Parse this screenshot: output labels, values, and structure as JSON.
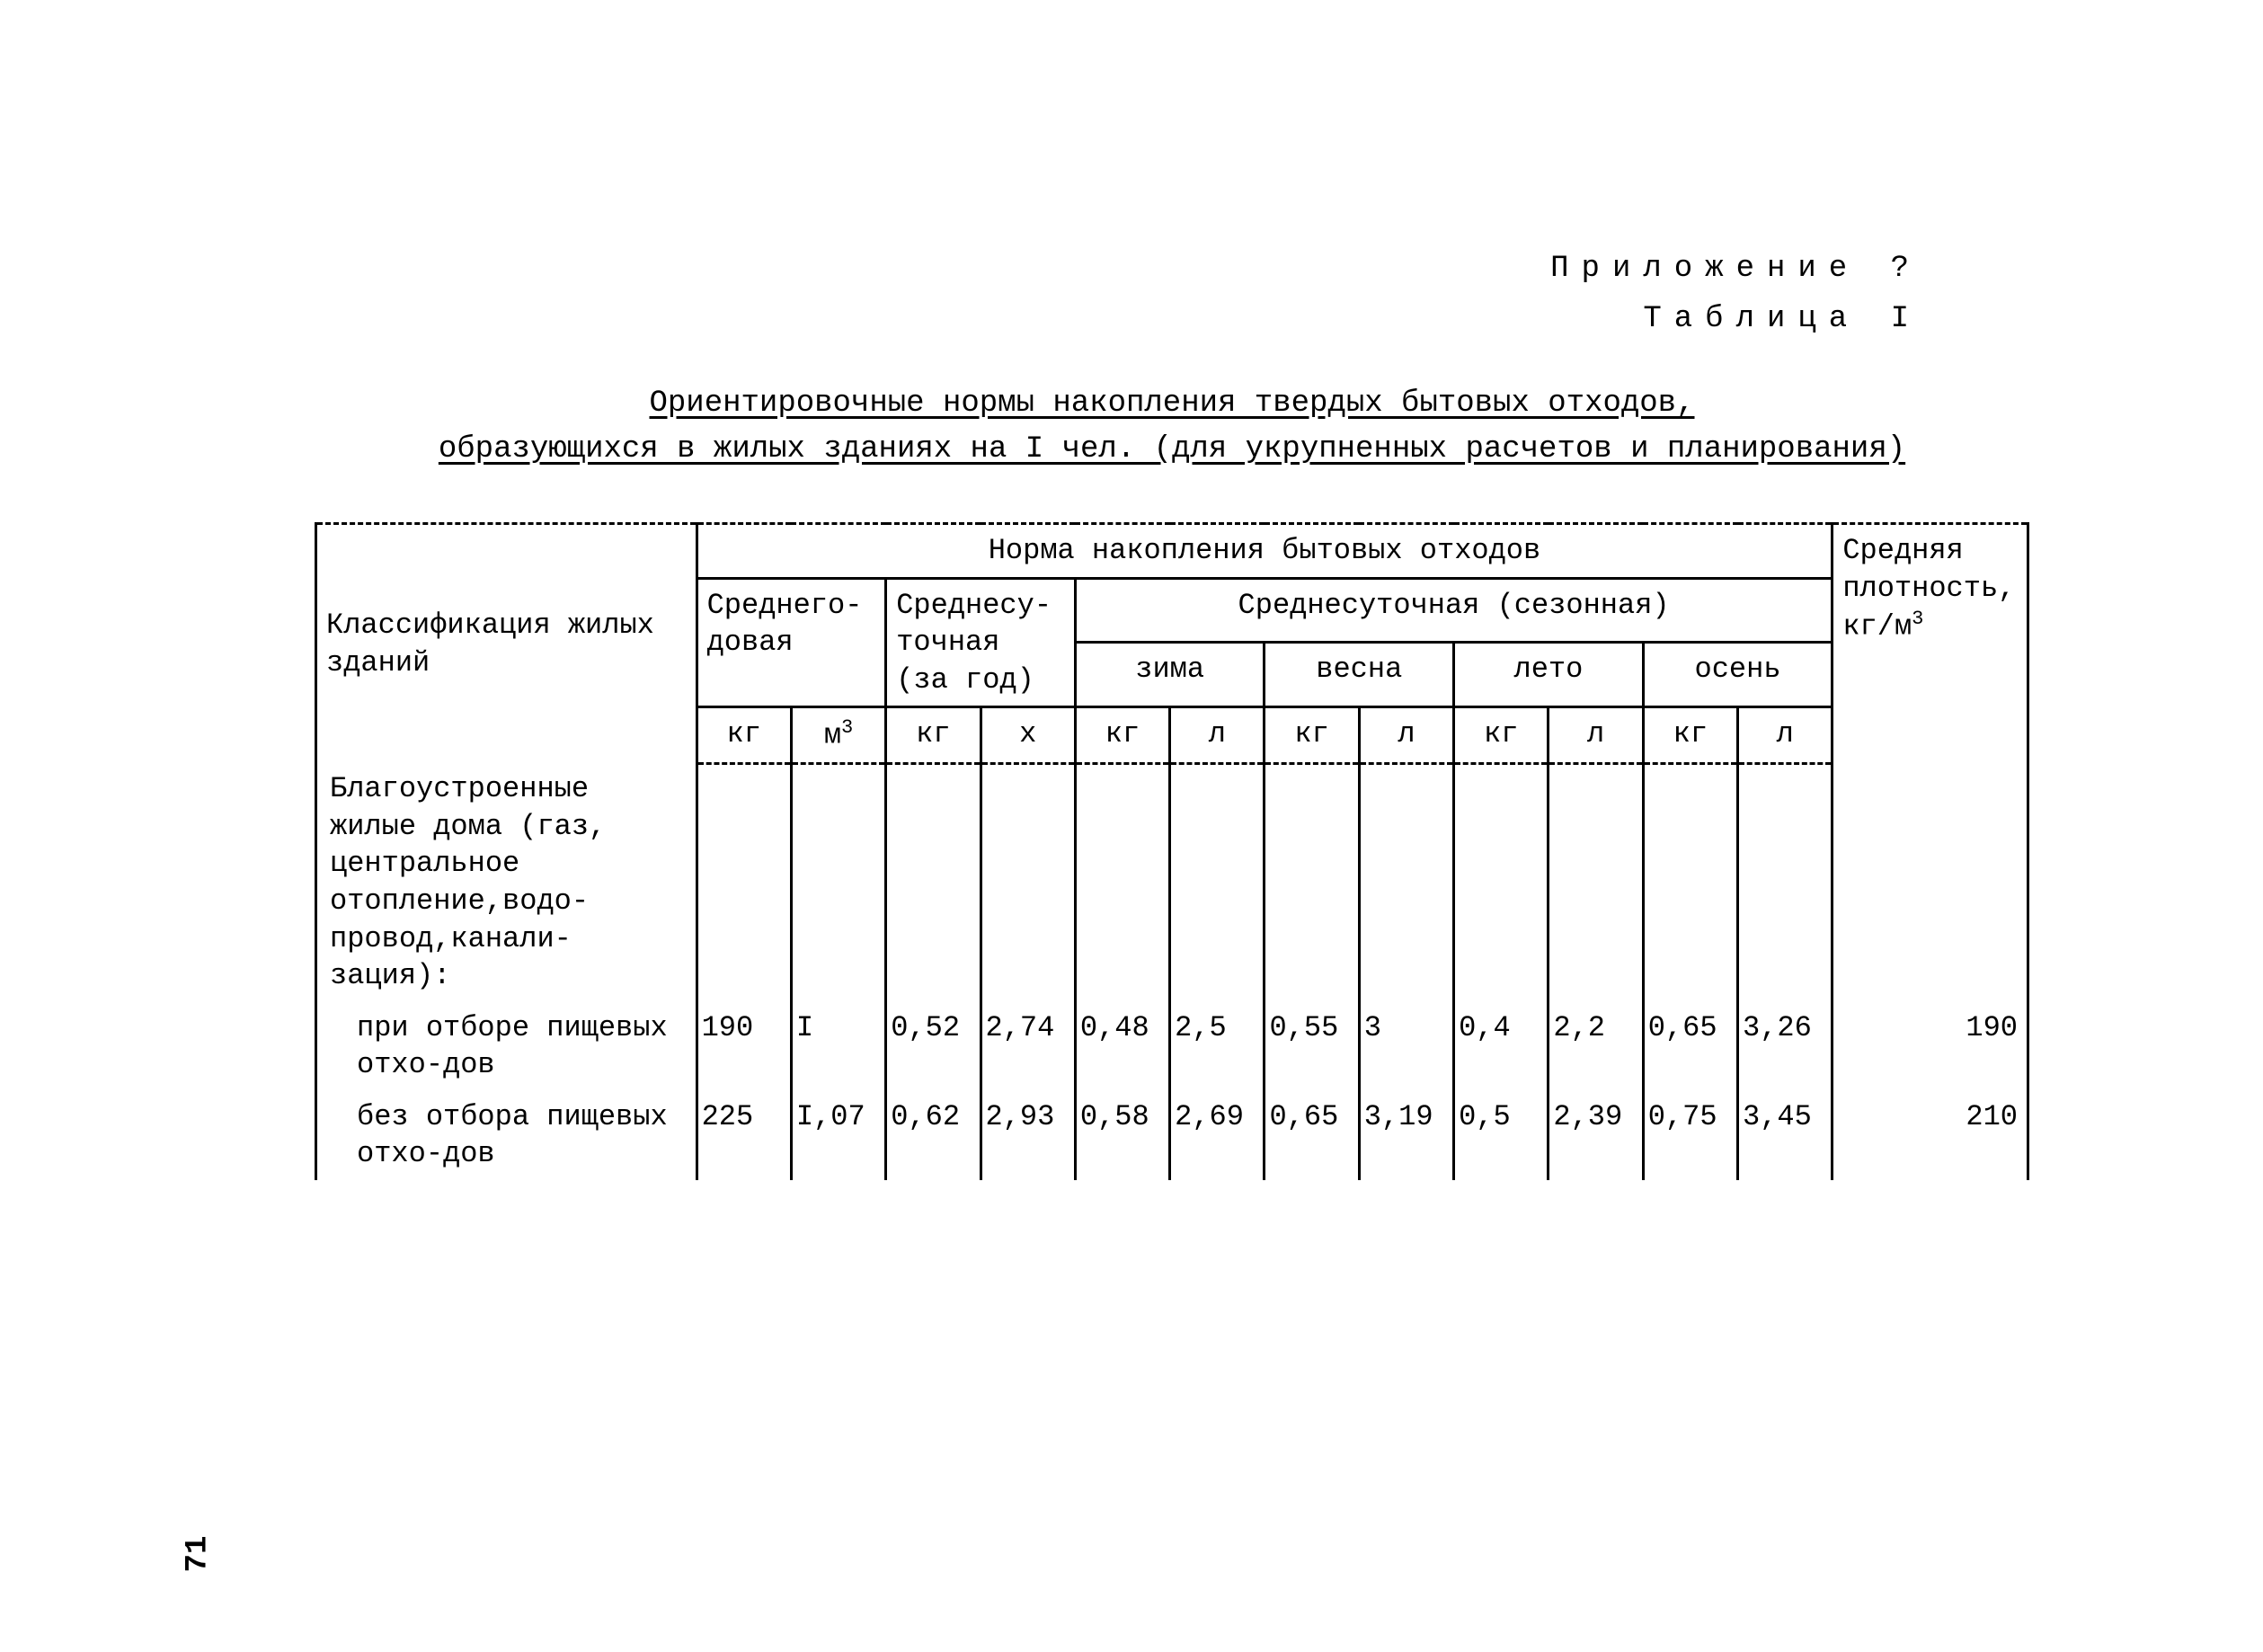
{
  "headers": {
    "appendix": "Приложение ?",
    "table": "Таблица I"
  },
  "title": {
    "line1": "Ориентировочные нормы накопления твердых бытовых отходов,",
    "line2": "образующихся в жилых зданиях на I чел. (для укрупненных расчетов и планирования)"
  },
  "thead": {
    "classification": "Классификация жилых зданий",
    "norm": "Норма накопления бытовых отходов",
    "avg_density": "Средняя плотность, кг/м",
    "annual": "Среднего-довая",
    "daily": "Среднесу-точная (за год)",
    "seasonal": "Среднесуточная (сезонная)",
    "kg": "кг",
    "m3": "м",
    "m3_sup": "3",
    "l": "л",
    "x": "x",
    "winter": "зима",
    "spring": "весна",
    "summer": "лето",
    "autumn": "осень"
  },
  "rows": {
    "group1": "Благоустроенные жилые дома (газ, центральное отопление,водо-провод,канали-зация):",
    "r1_label": "при отборе пищевых отхо-дов",
    "r1": {
      "c1": "190",
      "c2": "I",
      "c3": "0,52",
      "c4": "2,74",
      "c5": "0,48",
      "c6": "2,5",
      "c7": "0,55",
      "c8": "3",
      "c9": "0,4",
      "c10": "2,2",
      "c11": "0,65",
      "c12": "3,26",
      "c13": "190"
    },
    "r2_label": "без отбора пищевых отхо-дов",
    "r2": {
      "c1": "225",
      "c2": "I,07",
      "c3": "0,62",
      "c4": "2,93",
      "c5": "0,58",
      "c6": "2,69",
      "c7": "0,65",
      "c8": "3,19",
      "c9": "0,5",
      "c10": "2,39",
      "c11": "0,75",
      "c12": "3,45",
      "c13": "210"
    }
  },
  "page_number": "71",
  "colors": {
    "bg": "#ffffff",
    "text": "#000000",
    "border": "#000000"
  }
}
